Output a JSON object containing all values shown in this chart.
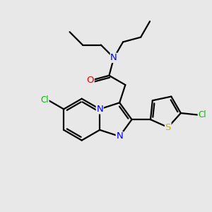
{
  "bg_color": "#e8e8e8",
  "bond_color": "#000000",
  "bond_lw": 1.6,
  "atom_colors": {
    "N": "#0000ee",
    "O": "#ee0000",
    "Cl": "#00bb00",
    "S": "#bbbb00",
    "C": "#000000"
  },
  "font_size": 8.5,
  "fig_size": [
    3.0,
    3.0
  ],
  "dpi": 100
}
